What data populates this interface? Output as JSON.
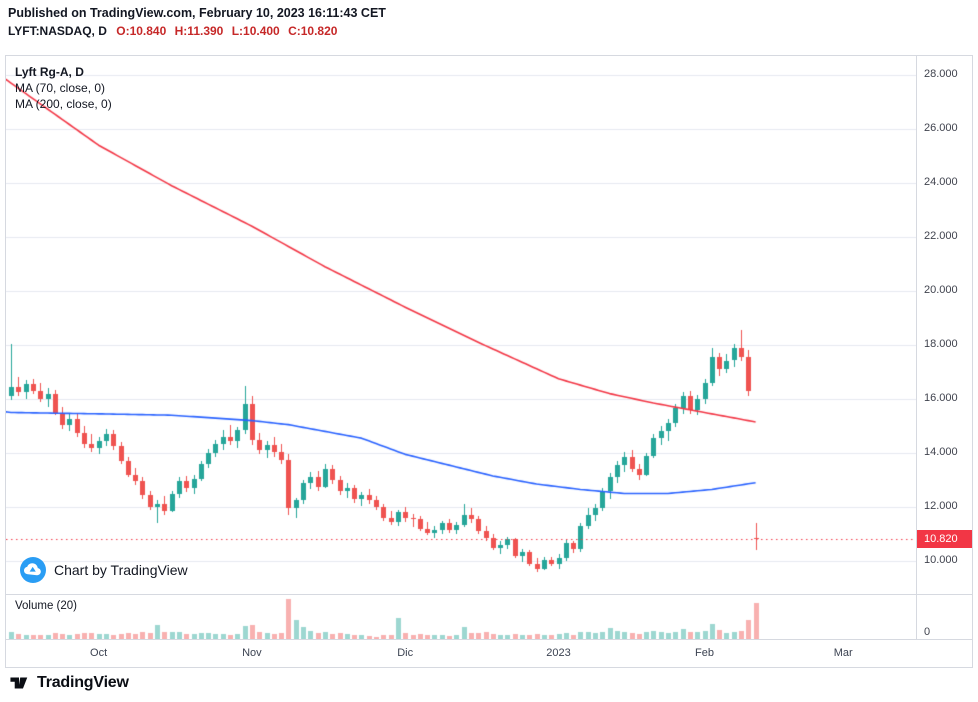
{
  "header": {
    "published_line": "Published on TradingView.com, February 10, 2023 16:11:43 CET",
    "symbol_line": {
      "symbol": "LYFT:NASDAQ, D",
      "ohlc": [
        "O:10.840",
        "H:11.390",
        "L:10.400",
        "C:10.820"
      ]
    }
  },
  "legend": {
    "title": "Lyft Rg-A, D",
    "ma70_label": "MA (70, close, 0)",
    "ma200_label": "MA (200, close, 0)"
  },
  "watermark": {
    "label": "Chart by TradingView"
  },
  "volume_pane": {
    "label": "Volume (20)",
    "zero_label": "0"
  },
  "price_scale": {
    "ticks": [
      "28.000",
      "26.000",
      "24.000",
      "22.000",
      "20.000",
      "18.000",
      "16.000",
      "14.000",
      "12.000",
      "10.000"
    ],
    "last_price_label": "10.820"
  },
  "time_axis": {
    "labels": [
      {
        "text": "Oct",
        "i": 12
      },
      {
        "text": "Nov",
        "i": 33
      },
      {
        "text": "Dic",
        "i": 54
      },
      {
        "text": "2023",
        "i": 75
      },
      {
        "text": "Feb",
        "i": 95
      },
      {
        "text": "Mar",
        "i": 114
      }
    ]
  },
  "footer": {
    "brand": "TradingView"
  },
  "colors": {
    "up": "#26a69a",
    "down": "#ef5350",
    "ma70": "#2962ff",
    "ma200": "#f23645",
    "last_price": "#f23645",
    "volume_up": "#26a69a",
    "volume_down": "#ef5350",
    "watermark": "#2a9df4",
    "grid": "#e6e9f0"
  },
  "chart_data": {
    "type": "candlestick",
    "title": "Lyft Rg-A, D",
    "symbol": "LYFT:NASDAQ",
    "interval": "D",
    "ohlc_readout": {
      "open": 10.84,
      "high": 11.39,
      "low": 10.4,
      "close": 10.82
    },
    "last_price": 10.82,
    "price_ticks": [
      28,
      26,
      24,
      22,
      20,
      18,
      16,
      14,
      12,
      10
    ],
    "ylim": [
      8.8,
      29.4
    ],
    "volume_axis_max": 90,
    "candles": [
      [
        "2022-09-15",
        16.1,
        18.05,
        15.95,
        16.45,
        14
      ],
      [
        "2022-09-16",
        16.45,
        16.8,
        16.1,
        16.25,
        11
      ],
      [
        "2022-09-19",
        16.25,
        16.7,
        16.0,
        16.55,
        9
      ],
      [
        "2022-09-20",
        16.55,
        16.75,
        16.2,
        16.3,
        8
      ],
      [
        "2022-09-21",
        16.3,
        16.6,
        15.9,
        16.0,
        9
      ],
      [
        "2022-09-22",
        16.0,
        16.4,
        15.7,
        16.2,
        8
      ],
      [
        "2022-09-23",
        16.2,
        16.35,
        15.4,
        15.5,
        12
      ],
      [
        "2022-09-26",
        15.5,
        15.7,
        14.9,
        15.05,
        11
      ],
      [
        "2022-09-27",
        15.05,
        15.45,
        14.8,
        15.25,
        9
      ],
      [
        "2022-09-28",
        15.25,
        15.5,
        14.6,
        14.75,
        10
      ],
      [
        "2022-09-29",
        14.75,
        15.0,
        14.2,
        14.35,
        12
      ],
      [
        "2022-09-30",
        14.35,
        14.7,
        14.05,
        14.2,
        13
      ],
      [
        "2022-10-03",
        14.2,
        14.6,
        13.95,
        14.45,
        10
      ],
      [
        "2022-10-04",
        14.45,
        14.9,
        14.25,
        14.7,
        11
      ],
      [
        "2022-10-05",
        14.7,
        14.85,
        14.1,
        14.25,
        9
      ],
      [
        "2022-10-06",
        14.25,
        14.4,
        13.6,
        13.7,
        10
      ],
      [
        "2022-10-07",
        13.7,
        13.85,
        13.1,
        13.2,
        13
      ],
      [
        "2022-10-10",
        13.2,
        13.45,
        12.8,
        12.95,
        11
      ],
      [
        "2022-10-11",
        12.95,
        13.1,
        12.3,
        12.45,
        14
      ],
      [
        "2022-10-12",
        12.45,
        12.6,
        11.9,
        12.0,
        12
      ],
      [
        "2022-10-13",
        12.0,
        12.25,
        11.4,
        12.1,
        30
      ],
      [
        "2022-10-14",
        12.1,
        12.4,
        11.7,
        11.85,
        16
      ],
      [
        "2022-10-17",
        11.85,
        12.6,
        11.8,
        12.5,
        14
      ],
      [
        "2022-10-18",
        12.5,
        13.1,
        12.35,
        12.95,
        15
      ],
      [
        "2022-10-19",
        12.95,
        13.15,
        12.55,
        12.7,
        10
      ],
      [
        "2022-10-20",
        12.7,
        13.2,
        12.5,
        13.05,
        11
      ],
      [
        "2022-10-21",
        13.05,
        13.7,
        12.95,
        13.6,
        13
      ],
      [
        "2022-10-24",
        13.6,
        14.15,
        13.45,
        14.0,
        12
      ],
      [
        "2022-10-25",
        14.0,
        14.5,
        13.85,
        14.35,
        11
      ],
      [
        "2022-10-26",
        14.35,
        14.85,
        14.1,
        14.6,
        10
      ],
      [
        "2022-10-27",
        14.6,
        15.05,
        14.3,
        14.45,
        9
      ],
      [
        "2022-10-28",
        14.45,
        14.95,
        14.2,
        14.85,
        10
      ],
      [
        "2022-10-31",
        14.85,
        16.5,
        14.7,
        15.8,
        28
      ],
      [
        "2022-11-01",
        15.8,
        16.1,
        14.3,
        14.5,
        30
      ],
      [
        "2022-11-02",
        14.5,
        14.75,
        13.95,
        14.1,
        14
      ],
      [
        "2022-11-03",
        14.1,
        14.45,
        13.8,
        14.3,
        12
      ],
      [
        "2022-11-04",
        14.3,
        14.6,
        13.85,
        14.05,
        11
      ],
      [
        "2022-11-07",
        14.05,
        14.35,
        13.6,
        13.75,
        13
      ],
      [
        "2022-11-08",
        13.75,
        13.95,
        11.7,
        11.95,
        85
      ],
      [
        "2022-11-09",
        11.95,
        12.35,
        11.6,
        12.25,
        40
      ],
      [
        "2022-11-10",
        12.25,
        13.0,
        12.1,
        12.9,
        26
      ],
      [
        "2022-11-11",
        12.9,
        13.3,
        12.65,
        13.1,
        18
      ],
      [
        "2022-11-14",
        13.1,
        13.35,
        12.6,
        12.75,
        13
      ],
      [
        "2022-11-15",
        12.75,
        13.6,
        12.7,
        13.4,
        15
      ],
      [
        "2022-11-16",
        13.4,
        13.55,
        12.85,
        13.0,
        11
      ],
      [
        "2022-11-17",
        13.0,
        13.15,
        12.45,
        12.6,
        12
      ],
      [
        "2022-11-18",
        12.6,
        12.9,
        12.35,
        12.7,
        10
      ],
      [
        "2022-11-21",
        12.7,
        12.8,
        12.15,
        12.3,
        9
      ],
      [
        "2022-11-22",
        12.3,
        12.55,
        12.05,
        12.45,
        8
      ],
      [
        "2022-11-23",
        12.45,
        12.65,
        12.1,
        12.25,
        7
      ],
      [
        "2022-11-25",
        12.25,
        12.4,
        11.9,
        12.0,
        5
      ],
      [
        "2022-11-28",
        12.0,
        12.1,
        11.5,
        11.6,
        9
      ],
      [
        "2022-11-29",
        11.6,
        11.85,
        11.35,
        11.45,
        8
      ],
      [
        "2022-11-30",
        11.45,
        11.9,
        11.3,
        11.8,
        45
      ],
      [
        "2022-12-01",
        11.8,
        12.0,
        11.45,
        11.6,
        12
      ],
      [
        "2022-12-02",
        11.6,
        11.75,
        11.25,
        11.55,
        9
      ],
      [
        "2022-12-05",
        11.55,
        11.65,
        11.1,
        11.2,
        10
      ],
      [
        "2022-12-06",
        11.2,
        11.45,
        10.95,
        11.05,
        9
      ],
      [
        "2022-12-07",
        11.05,
        11.3,
        10.85,
        11.15,
        8
      ],
      [
        "2022-12-08",
        11.15,
        11.5,
        11.0,
        11.4,
        8
      ],
      [
        "2022-12-09",
        11.4,
        11.55,
        11.05,
        11.15,
        7
      ],
      [
        "2022-12-12",
        11.15,
        11.45,
        11.0,
        11.35,
        8
      ],
      [
        "2022-12-13",
        11.35,
        12.1,
        11.25,
        11.7,
        25
      ],
      [
        "2022-12-14",
        11.7,
        11.95,
        11.4,
        11.55,
        12
      ],
      [
        "2022-12-15",
        11.55,
        11.65,
        11.0,
        11.1,
        13
      ],
      [
        "2022-12-16",
        11.1,
        11.3,
        10.75,
        10.85,
        14
      ],
      [
        "2022-12-19",
        10.85,
        11.0,
        10.4,
        10.5,
        11
      ],
      [
        "2022-12-20",
        10.5,
        10.75,
        10.25,
        10.6,
        9
      ],
      [
        "2022-12-21",
        10.6,
        10.9,
        10.45,
        10.8,
        8
      ],
      [
        "2022-12-22",
        10.8,
        10.85,
        10.1,
        10.2,
        10
      ],
      [
        "2022-12-23",
        10.2,
        10.45,
        9.95,
        10.35,
        8
      ],
      [
        "2022-12-27",
        10.35,
        10.4,
        9.8,
        9.9,
        9
      ],
      [
        "2022-12-28",
        9.9,
        10.1,
        9.6,
        9.7,
        10
      ],
      [
        "2022-12-29",
        9.7,
        10.15,
        9.65,
        10.05,
        9
      ],
      [
        "2022-12-30",
        10.05,
        10.15,
        9.8,
        9.9,
        8
      ],
      [
        "2023-01-03",
        9.9,
        10.25,
        9.7,
        10.1,
        11
      ],
      [
        "2023-01-04",
        10.1,
        10.8,
        10.0,
        10.65,
        13
      ],
      [
        "2023-01-05",
        10.65,
        10.75,
        10.3,
        10.45,
        9
      ],
      [
        "2023-01-06",
        10.45,
        11.4,
        10.35,
        11.3,
        16
      ],
      [
        "2023-01-09",
        11.3,
        11.95,
        11.2,
        11.7,
        14
      ],
      [
        "2023-01-10",
        11.7,
        12.1,
        11.5,
        11.95,
        12
      ],
      [
        "2023-01-11",
        11.95,
        12.7,
        11.85,
        12.6,
        15
      ],
      [
        "2023-01-12",
        12.6,
        13.25,
        12.3,
        13.1,
        24
      ],
      [
        "2023-01-13",
        13.1,
        13.7,
        12.9,
        13.55,
        18
      ],
      [
        "2023-01-17",
        13.55,
        14.05,
        13.3,
        13.85,
        15
      ],
      [
        "2023-01-18",
        13.85,
        14.1,
        13.3,
        13.4,
        13
      ],
      [
        "2023-01-19",
        13.4,
        13.6,
        13.0,
        13.2,
        11
      ],
      [
        "2023-01-20",
        13.2,
        14.0,
        13.15,
        13.9,
        14
      ],
      [
        "2023-01-23",
        13.9,
        14.7,
        13.8,
        14.55,
        17
      ],
      [
        "2023-01-24",
        14.55,
        15.0,
        14.3,
        14.8,
        14
      ],
      [
        "2023-01-25",
        14.8,
        15.25,
        14.45,
        15.1,
        13
      ],
      [
        "2023-01-26",
        15.1,
        15.8,
        14.95,
        15.65,
        16
      ],
      [
        "2023-01-27",
        15.65,
        16.25,
        15.45,
        16.1,
        22
      ],
      [
        "2023-01-30",
        16.1,
        16.3,
        15.45,
        15.6,
        15
      ],
      [
        "2023-01-31",
        15.6,
        16.15,
        15.4,
        16.0,
        14
      ],
      [
        "2023-02-01",
        16.0,
        16.75,
        15.8,
        16.6,
        17
      ],
      [
        "2023-02-02",
        16.6,
        17.9,
        16.5,
        17.55,
        33
      ],
      [
        "2023-02-03",
        17.55,
        17.7,
        16.85,
        17.1,
        20
      ],
      [
        "2023-02-06",
        17.1,
        17.65,
        16.95,
        17.4,
        13
      ],
      [
        "2023-02-07",
        17.45,
        18.05,
        17.2,
        17.9,
        16
      ],
      [
        "2023-02-08",
        17.9,
        18.55,
        17.4,
        17.55,
        18
      ],
      [
        "2023-02-09",
        17.55,
        17.8,
        16.1,
        16.3,
        40
      ],
      [
        "2023-02-10",
        10.84,
        11.39,
        10.4,
        10.82,
        78
      ]
    ],
    "overlays": [
      {
        "name": "MA (70, close, 0)",
        "type": "line",
        "points": [
          [
            -1.5,
            15.55
          ],
          [
            0,
            15.5
          ],
          [
            12,
            15.45
          ],
          [
            22,
            15.4
          ],
          [
            33,
            15.2
          ],
          [
            38,
            15.05
          ],
          [
            43,
            14.8
          ],
          [
            48,
            14.55
          ],
          [
            54,
            13.95
          ],
          [
            60,
            13.55
          ],
          [
            66,
            13.15
          ],
          [
            72,
            12.85
          ],
          [
            78,
            12.65
          ],
          [
            84,
            12.5
          ],
          [
            90,
            12.5
          ],
          [
            96,
            12.65
          ],
          [
            102,
            12.9
          ]
        ]
      },
      {
        "name": "MA (200, close, 0)",
        "type": "line",
        "points": [
          [
            -1.5,
            28.0
          ],
          [
            0,
            27.7
          ],
          [
            12,
            25.4
          ],
          [
            22,
            23.9
          ],
          [
            33,
            22.4
          ],
          [
            43,
            20.9
          ],
          [
            54,
            19.4
          ],
          [
            64,
            18.1
          ],
          [
            75,
            16.75
          ],
          [
            82,
            16.2
          ],
          [
            88,
            15.85
          ],
          [
            95,
            15.5
          ],
          [
            102,
            15.15
          ]
        ]
      }
    ]
  }
}
